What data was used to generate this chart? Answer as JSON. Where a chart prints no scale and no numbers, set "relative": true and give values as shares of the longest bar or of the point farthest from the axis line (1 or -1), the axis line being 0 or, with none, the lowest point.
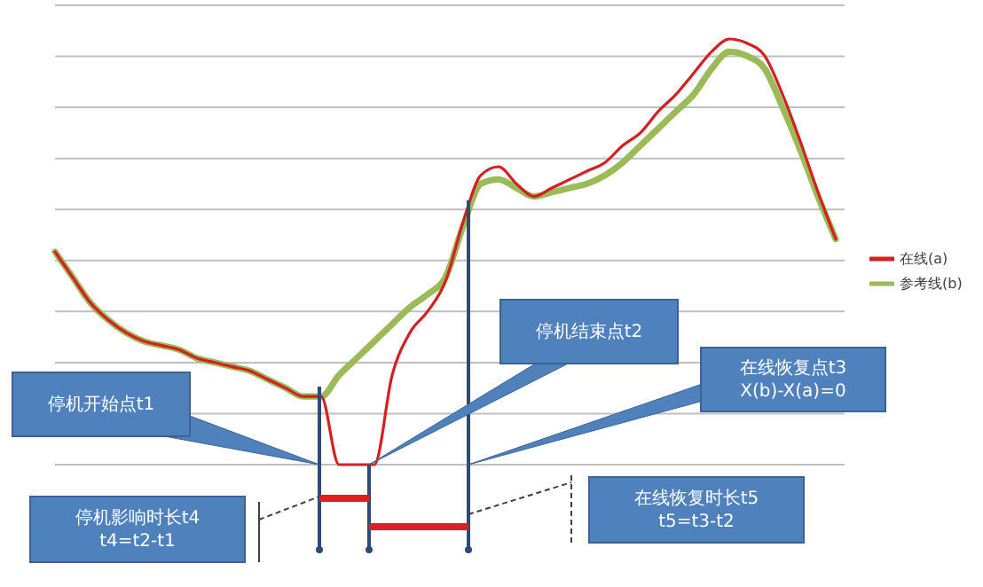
{
  "chart_data": {
    "type": "line",
    "relative": true,
    "grid": true,
    "legend": "right",
    "categories": [
      null,
      null,
      null,
      null,
      null,
      null,
      null,
      null,
      null,
      null,
      null,
      null,
      null,
      null,
      null,
      null,
      null,
      null,
      null,
      null,
      null,
      null,
      null,
      null,
      null,
      null,
      null,
      null,
      null,
      null,
      null,
      null,
      null,
      null,
      null,
      null,
      null,
      null,
      null,
      null,
      null,
      null,
      null,
      null,
      null
    ],
    "series": [
      {
        "name": "参考线(b)",
        "color": "#9bbb59",
        "values": [
          0.5,
          0.44,
          0.38,
          0.34,
          0.31,
          0.29,
          0.28,
          0.27,
          0.25,
          0.24,
          0.23,
          0.22,
          0.2,
          0.18,
          0.16,
          0.16,
          0.21,
          0.25,
          0.29,
          0.33,
          0.37,
          0.4,
          0.44,
          0.56,
          0.66,
          0.67,
          0.65,
          0.63,
          0.64,
          0.65,
          0.66,
          0.68,
          0.71,
          0.75,
          0.79,
          0.83,
          0.87,
          0.93,
          0.97,
          0.96,
          0.93,
          0.84,
          0.74,
          0.63,
          0.53
        ]
      },
      {
        "name": "在线(a)",
        "color": "#d42020",
        "values": [
          0.5,
          0.44,
          0.38,
          0.34,
          0.31,
          0.29,
          0.28,
          0.27,
          0.25,
          0.24,
          0.23,
          0.22,
          0.2,
          0.18,
          0.16,
          0.16,
          0,
          0,
          0,
          0.21,
          0.31,
          0.36,
          0.43,
          0.57,
          0.68,
          0.7,
          0.66,
          0.63,
          0.65,
          0.67,
          0.69,
          0.71,
          0.75,
          0.78,
          0.83,
          0.87,
          0.92,
          0.97,
          1,
          0.99,
          0.96,
          0.87,
          0.76,
          0.64,
          0.53
        ]
      }
    ],
    "annotations": [
      "停机开始点t1",
      "停机结束点t2",
      "在线恢复点t3\nX(b)-X(a)=0",
      "停机影响时长t4\nt4=t2-t1",
      "在线恢复时长t5\nt5=t3-t2"
    ]
  }
}
